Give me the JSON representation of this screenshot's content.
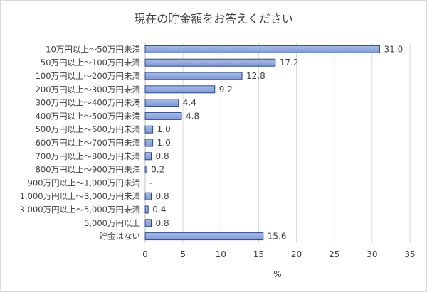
{
  "chart_data": {
    "type": "bar",
    "orientation": "horizontal",
    "title": "現在の貯金額をお答えください",
    "xlabel": "%",
    "ylabel": "",
    "xlim": [
      0,
      35
    ],
    "xticks": [
      0,
      5,
      10,
      15,
      20,
      25,
      30,
      35
    ],
    "grid": true,
    "categories": [
      "10万円以上～50万円未満",
      "50万円以上～100万円未満",
      "100万円以上～200万円未満",
      "200万円以上～300万円未満",
      "300万円以上～400万円未満",
      "400万円以上～500万円未満",
      "500万円以上～600万円未満",
      "600万円以上～700万円未満",
      "700万円以上～800万円未満",
      "800万円以上～900万円未満",
      "900万円以上～1,000万円未満",
      "1,000万円以上～3,000万円未満",
      "3,000万円以上～5,000万円未満",
      "5,000万円以上",
      "貯金はない"
    ],
    "values": [
      31.0,
      17.2,
      12.8,
      9.2,
      4.4,
      4.8,
      1.0,
      1.0,
      0.8,
      0.2,
      0,
      0.8,
      0.4,
      0.8,
      15.6
    ],
    "data_labels": [
      "31.0",
      "17.2",
      "12.8",
      "9.2",
      "4.4",
      "4.8",
      "1.0",
      "1.0",
      "0.8",
      "0.2",
      "-",
      "0.8",
      "0.4",
      "0.8",
      "15.6"
    ],
    "colors": {
      "bar_fill_light": "#a9bce6",
      "bar_fill_dark": "#7f98d6",
      "bar_stroke": "#2f4a8a",
      "grid": "#d9d9d9",
      "text": "#404040"
    }
  }
}
